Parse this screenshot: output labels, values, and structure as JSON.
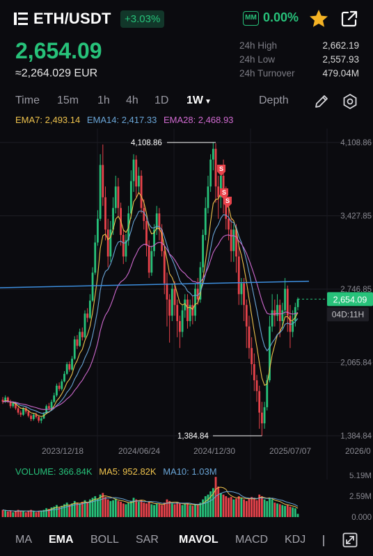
{
  "header": {
    "pair": "ETH/USDT",
    "change_badge": "+3.03%",
    "mm_label": "MM",
    "mm_value": "0.00%"
  },
  "price": {
    "last": "2,654.09",
    "fiat": "≈2,264.029 EUR"
  },
  "stats": [
    {
      "label": "24h High",
      "value": "2,662.19"
    },
    {
      "label": "24h Low",
      "value": "2,557.93"
    },
    {
      "label": "24h Turnover",
      "value": "479.04M"
    }
  ],
  "tabs": {
    "time": "Time",
    "m15": "15m",
    "h1": "1h",
    "h4": "4h",
    "d1": "1D",
    "w1": "1W",
    "depth": "Depth"
  },
  "ema": {
    "ema7": "EMA7: 2,493.14",
    "ema14": "EMA14: 2,417.33",
    "ema28": "EMA28: 2,468.93"
  },
  "volume": {
    "vol": "VOLUME: 366.84K",
    "ma5": "MA5: 952.82K",
    "ma10": "MA10: 1.03M"
  },
  "chart_data": {
    "type": "candlestick",
    "y_axis_ticks": [
      "4,108.86",
      "3,427.85",
      "2,746.85",
      "2,065.84",
      "1,384.84"
    ],
    "x_axis_ticks": [
      "2023/12/18",
      "2024/06/24",
      "2024/12/30",
      "2025/07/07",
      "2026/0"
    ],
    "max_label": "4,108.86",
    "min_label": "1,384.84",
    "last_price_label": "2,654.09",
    "countdown_label": "04D:11H",
    "volume_axis_ticks": [
      "5.19M",
      "2.59M",
      "0.000"
    ],
    "colors": {
      "up": "#27c27a",
      "down": "#e8434b",
      "ema7": "#f0c44d",
      "ema14": "#6aa6d8",
      "ema28": "#d06ad0",
      "trendline": "#3d8fe0"
    },
    "candles": [
      [
        1720,
        1700,
        1745,
        1680
      ],
      [
        1700,
        1740,
        1760,
        1690
      ],
      [
        1740,
        1705,
        1750,
        1690
      ],
      [
        1705,
        1660,
        1720,
        1640
      ],
      [
        1660,
        1690,
        1705,
        1645
      ],
      [
        1690,
        1640,
        1700,
        1625
      ],
      [
        1640,
        1600,
        1655,
        1580
      ],
      [
        1600,
        1580,
        1620,
        1560
      ],
      [
        1580,
        1640,
        1650,
        1570
      ],
      [
        1640,
        1610,
        1655,
        1590
      ],
      [
        1610,
        1570,
        1625,
        1555
      ],
      [
        1570,
        1540,
        1585,
        1520
      ],
      [
        1540,
        1580,
        1595,
        1525
      ],
      [
        1580,
        1560,
        1600,
        1545
      ],
      [
        1560,
        1525,
        1570,
        1505
      ],
      [
        1525,
        1545,
        1560,
        1500
      ],
      [
        1545,
        1590,
        1605,
        1540
      ],
      [
        1590,
        1660,
        1675,
        1585
      ],
      [
        1660,
        1640,
        1690,
        1620
      ],
      [
        1640,
        1700,
        1720,
        1630
      ],
      [
        1700,
        1760,
        1785,
        1690
      ],
      [
        1760,
        1850,
        1870,
        1745
      ],
      [
        1850,
        1820,
        1880,
        1800
      ],
      [
        1820,
        1890,
        1910,
        1805
      ],
      [
        1890,
        1960,
        1985,
        1880
      ],
      [
        1960,
        2050,
        2070,
        1950
      ],
      [
        2050,
        2000,
        2075,
        1980
      ],
      [
        2000,
        2100,
        2125,
        1990
      ],
      [
        2100,
        2280,
        2310,
        2090
      ],
      [
        2280,
        2220,
        2320,
        2190
      ],
      [
        2220,
        2350,
        2380,
        2210
      ],
      [
        2350,
        2300,
        2390,
        2270
      ],
      [
        2300,
        2520,
        2550,
        2290
      ],
      [
        2520,
        2480,
        2570,
        2440
      ],
      [
        2480,
        2640,
        2700,
        2470
      ],
      [
        2640,
        2900,
        2950,
        2630
      ],
      [
        2900,
        3180,
        3250,
        2880
      ],
      [
        3180,
        3400,
        3480,
        3150
      ],
      [
        3400,
        3900,
        4000,
        3380
      ],
      [
        3900,
        3600,
        4090,
        3520
      ],
      [
        3600,
        3300,
        3700,
        3200
      ],
      [
        3300,
        3050,
        3400,
        2950
      ],
      [
        3050,
        3300,
        3380,
        3000
      ],
      [
        3300,
        3500,
        3600,
        3250
      ],
      [
        3500,
        3700,
        3800,
        3450
      ],
      [
        3700,
        3500,
        3780,
        3420
      ],
      [
        3500,
        3250,
        3550,
        3150
      ],
      [
        3250,
        3050,
        3300,
        2980
      ],
      [
        3050,
        3200,
        3260,
        3000
      ],
      [
        3200,
        3450,
        3520,
        3150
      ],
      [
        3450,
        3750,
        3850,
        3400
      ],
      [
        3750,
        3950,
        4000,
        3650
      ],
      [
        3950,
        3700,
        3990,
        3600
      ],
      [
        3700,
        3800,
        3880,
        3650
      ],
      [
        3800,
        3500,
        3850,
        3450
      ],
      [
        3500,
        3380,
        3580,
        3300
      ],
      [
        3380,
        3150,
        3420,
        3050
      ],
      [
        3150,
        2900,
        3200,
        2850
      ],
      [
        2900,
        3100,
        3150,
        2870
      ],
      [
        3100,
        3300,
        3350,
        3050
      ],
      [
        3300,
        3450,
        3520,
        3250
      ],
      [
        3450,
        3300,
        3500,
        3200
      ],
      [
        3300,
        3100,
        3350,
        3050
      ],
      [
        3100,
        2800,
        3150,
        2700
      ],
      [
        2800,
        2650,
        2900,
        2400
      ],
      [
        2650,
        2500,
        2700,
        2250
      ],
      [
        2500,
        2750,
        2800,
        2450
      ],
      [
        2750,
        2600,
        2820,
        2500
      ],
      [
        2600,
        2450,
        2650,
        2300
      ],
      [
        2450,
        2350,
        2500,
        2200
      ],
      [
        2350,
        2550,
        2600,
        2300
      ],
      [
        2550,
        2650,
        2700,
        2480
      ],
      [
        2650,
        2450,
        2700,
        2380
      ],
      [
        2450,
        2600,
        2650,
        2400
      ],
      [
        2600,
        2500,
        2680,
        2420
      ],
      [
        2500,
        2750,
        2800,
        2450
      ],
      [
        2750,
        2650,
        2850,
        2600
      ],
      [
        2650,
        2950,
        3000,
        2620
      ],
      [
        2950,
        3250,
        3300,
        2900
      ],
      [
        3250,
        3500,
        3600,
        3200
      ],
      [
        3500,
        3700,
        3800,
        3450
      ],
      [
        3700,
        3950,
        4000,
        3650
      ],
      [
        3950,
        4050,
        4108,
        3850
      ],
      [
        4050,
        3700,
        4100,
        3550
      ],
      [
        3700,
        3600,
        3800,
        3400
      ],
      [
        3600,
        3800,
        3900,
        3500
      ],
      [
        3800,
        3650,
        3950,
        3450
      ],
      [
        3650,
        3400,
        3700,
        3300
      ],
      [
        3400,
        3300,
        3500,
        3200
      ],
      [
        3300,
        3100,
        3400,
        3000
      ],
      [
        3100,
        3300,
        3350,
        3000
      ],
      [
        3300,
        3050,
        3350,
        2900
      ],
      [
        3050,
        2700,
        3150,
        2600
      ],
      [
        2700,
        2800,
        2850,
        2600
      ],
      [
        2800,
        2600,
        2850,
        2450
      ],
      [
        2600,
        2400,
        2650,
        2200
      ],
      [
        2400,
        2200,
        2500,
        2100
      ],
      [
        2200,
        2050,
        2300,
        1950
      ],
      [
        2050,
        1900,
        2150,
        1800
      ],
      [
        1900,
        1800,
        1950,
        1700
      ],
      [
        1800,
        1600,
        1850,
        1450
      ],
      [
        1600,
        1500,
        1700,
        1384
      ],
      [
        1500,
        1650,
        1700,
        1450
      ],
      [
        1650,
        1900,
        1950,
        1620
      ],
      [
        1900,
        2400,
        2500,
        1880
      ],
      [
        2400,
        2550,
        2700,
        2350
      ],
      [
        2550,
        2500,
        2650,
        2400
      ],
      [
        2500,
        2600,
        2700,
        2450
      ],
      [
        2600,
        2450,
        2650,
        2300
      ],
      [
        2450,
        2550,
        2620,
        2380
      ],
      [
        2550,
        2750,
        2850,
        2500
      ],
      [
        2750,
        2500,
        2780,
        2350
      ],
      [
        2500,
        2350,
        2600,
        2200
      ],
      [
        2350,
        2450,
        2550,
        2300
      ],
      [
        2450,
        2580,
        2620,
        2400
      ],
      [
        2580,
        2654,
        2670,
        2550
      ]
    ],
    "volumes": [
      0.9,
      0.8,
      0.7,
      0.8,
      0.6,
      0.7,
      0.9,
      0.8,
      0.7,
      0.6,
      0.8,
      0.9,
      0.7,
      0.6,
      0.7,
      0.8,
      0.9,
      1.1,
      1.0,
      1.2,
      1.3,
      1.5,
      1.2,
      1.4,
      1.6,
      1.8,
      1.5,
      1.7,
      2.0,
      1.8,
      1.6,
      1.9,
      2.1,
      1.8,
      2.2,
      2.4,
      2.6,
      2.3,
      2.8,
      3.0,
      2.5,
      2.2,
      2.0,
      2.1,
      2.3,
      2.0,
      1.9,
      1.7,
      1.6,
      1.8,
      2.0,
      2.4,
      2.2,
      1.9,
      2.1,
      1.8,
      1.7,
      1.9,
      1.6,
      1.5,
      1.7,
      1.6,
      1.5,
      1.8,
      2.2,
      2.0,
      1.7,
      1.6,
      1.8,
      1.7,
      1.5,
      1.6,
      1.7,
      1.5,
      1.4,
      1.6,
      1.5,
      1.8,
      2.2,
      2.6,
      2.8,
      3.2,
      3.6,
      5.0,
      3.8,
      3.0,
      2.8,
      2.6,
      2.4,
      2.5,
      2.2,
      2.3,
      2.6,
      2.4,
      2.2,
      2.0,
      2.3,
      2.5,
      2.4,
      2.1,
      2.8,
      2.6,
      2.2,
      2.0,
      2.4,
      2.2,
      1.8,
      1.7,
      1.6,
      1.5,
      1.4,
      1.5,
      1.3,
      1.2,
      1.1,
      0.4
    ],
    "ema_range_hint": "EMA lines drawn over candles",
    "trendline": {
      "start_value": 2760,
      "end_value": 2820
    }
  },
  "indicators": {
    "ma": "MA",
    "ema": "EMA",
    "boll": "BOLL",
    "sar": "SAR",
    "mavol": "MAVOL",
    "macd": "MACD",
    "kdj": "KDJ"
  }
}
